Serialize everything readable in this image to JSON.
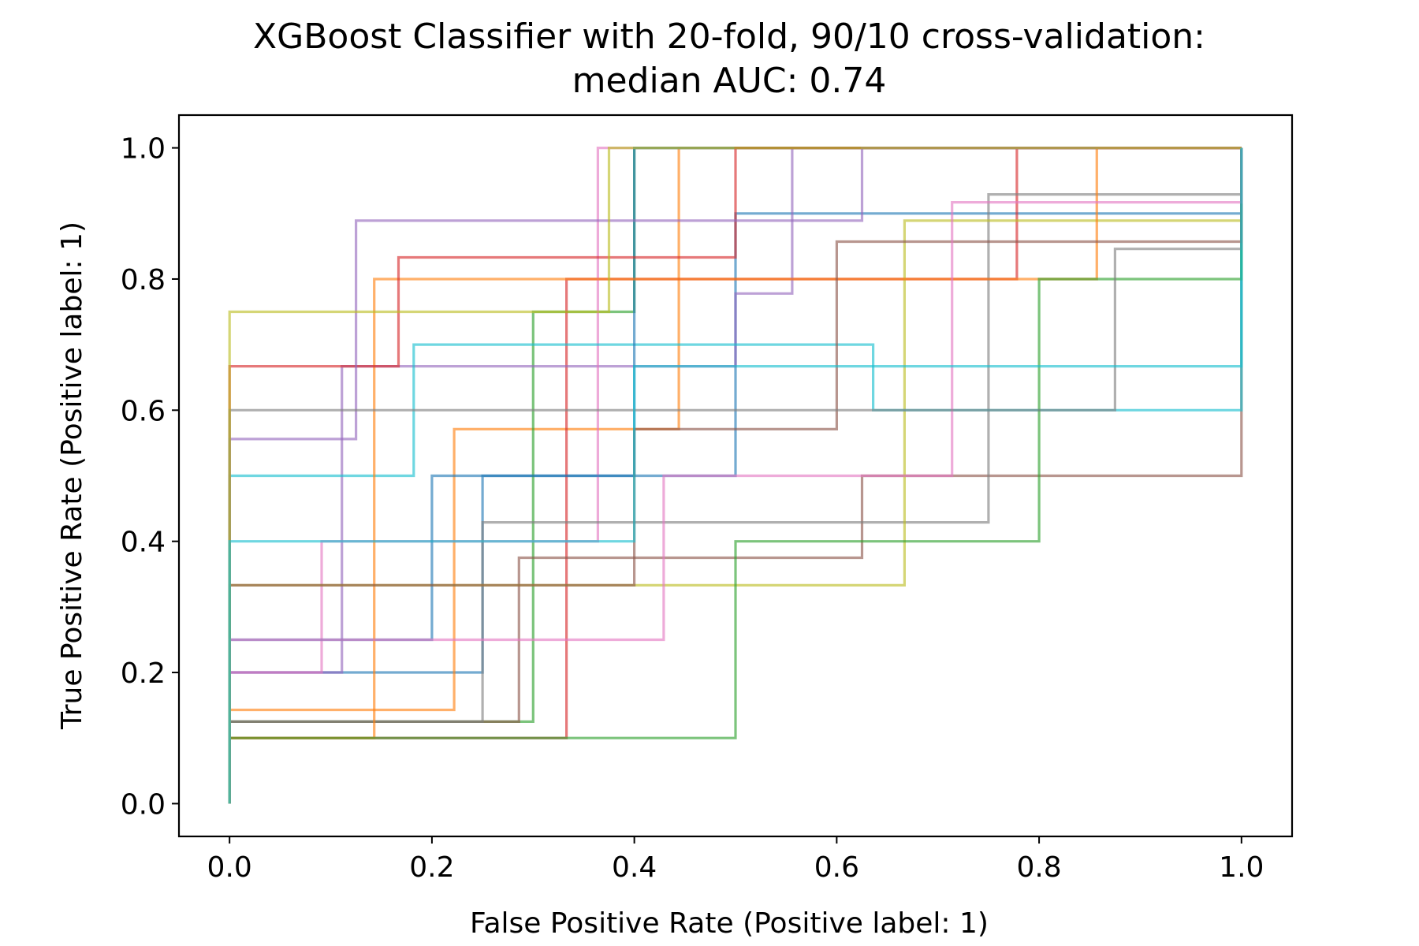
{
  "chart_data": {
    "type": "line",
    "title": "XGBoost Classifier with 20-fold, 90/10 cross-validation:",
    "subtitle": "median AUC: 0.74",
    "xlabel": "False Positive Rate (Positive label: 1)",
    "ylabel": "True Positive Rate (Positive label: 1)",
    "xlim": [
      -0.05,
      1.05
    ],
    "ylim": [
      -0.05,
      1.05
    ],
    "xticks": [
      "0.0",
      "0.2",
      "0.4",
      "0.6",
      "0.8",
      "1.0"
    ],
    "yticks": [
      "0.0",
      "0.2",
      "0.4",
      "0.6",
      "0.8",
      "1.0"
    ],
    "grid": false,
    "legend": "none",
    "colors": [
      "#1f77b4",
      "#ff7f0e",
      "#2ca02c",
      "#d62728",
      "#9467bd",
      "#8c564b",
      "#e377c2",
      "#7f7f7f",
      "#bcbd22",
      "#17becf"
    ],
    "series": [
      {
        "x": [
          0,
          0,
          0.25,
          0.25,
          0.5,
          0.5,
          1,
          1
        ],
        "y": [
          0,
          0.2,
          0.2,
          0.5,
          0.5,
          0.9,
          0.9,
          1
        ]
      },
      {
        "x": [
          0,
          0,
          0.222,
          0.222,
          0.444,
          0.444,
          1,
          1
        ],
        "y": [
          0,
          0.143,
          0.143,
          0.571,
          0.571,
          1,
          1,
          1
        ]
      },
      {
        "x": [
          0,
          0,
          0.3,
          0.3,
          0.4,
          0.4,
          1,
          1
        ],
        "y": [
          0,
          0.125,
          0.125,
          0.75,
          0.75,
          1,
          1,
          1
        ]
      },
      {
        "x": [
          0,
          0,
          0.333,
          0.333,
          0.778,
          0.778,
          1,
          1
        ],
        "y": [
          0,
          0.1,
          0.1,
          0.8,
          0.8,
          1,
          1,
          1
        ]
      },
      {
        "x": [
          0,
          0,
          0.111,
          0.111,
          0.5,
          0.5,
          0.556,
          0.556,
          1,
          1
        ],
        "y": [
          0,
          0.2,
          0.2,
          0.667,
          0.667,
          0.778,
          0.778,
          1,
          1,
          1
        ]
      },
      {
        "x": [
          0,
          0,
          0.286,
          0.286,
          0.625,
          0.625,
          1,
          1
        ],
        "y": [
          0,
          0.125,
          0.125,
          0.375,
          0.375,
          0.5,
          0.5,
          1
        ]
      },
      {
        "x": [
          0,
          0,
          0.091,
          0.091,
          0.364,
          0.364,
          1,
          1
        ],
        "y": [
          0,
          0.2,
          0.2,
          0.4,
          0.4,
          1,
          1,
          1
        ]
      },
      {
        "x": [
          0,
          0,
          0.25,
          0.25,
          0.75,
          0.75,
          1,
          1
        ],
        "y": [
          0,
          0.125,
          0.125,
          0.429,
          0.429,
          0.929,
          0.929,
          1
        ]
      },
      {
        "x": [
          0,
          0,
          0.333,
          0.333,
          0.667,
          0.667,
          1,
          1
        ],
        "y": [
          0,
          0.333,
          0.333,
          0.333,
          0.333,
          0.889,
          0.889,
          1
        ]
      },
      {
        "x": [
          0,
          0,
          0.182,
          0.182,
          0.636,
          0.636,
          1,
          1
        ],
        "y": [
          0,
          0.5,
          0.5,
          0.7,
          0.7,
          0.6,
          0.6,
          1
        ]
      },
      {
        "x": [
          0,
          0,
          0.2,
          0.2,
          0.4,
          0.4,
          1,
          1
        ],
        "y": [
          0,
          0.25,
          0.25,
          0.5,
          0.5,
          1,
          1,
          1
        ]
      },
      {
        "x": [
          0,
          0,
          0.143,
          0.143,
          0.429,
          0.429,
          0.857,
          0.857,
          1,
          1
        ],
        "y": [
          0,
          0.1,
          0.1,
          0.8,
          0.8,
          0.8,
          0.8,
          1,
          1,
          1
        ]
      },
      {
        "x": [
          0,
          0,
          0.5,
          0.5,
          0.8,
          0.8,
          1,
          1
        ],
        "y": [
          0,
          0.1,
          0.1,
          0.4,
          0.4,
          0.8,
          0.8,
          1
        ]
      },
      {
        "x": [
          0,
          0,
          0.167,
          0.167,
          0.5,
          0.5,
          1,
          1
        ],
        "y": [
          0,
          0.667,
          0.667,
          0.833,
          0.833,
          1,
          1,
          1
        ]
      },
      {
        "x": [
          0,
          0,
          0.125,
          0.125,
          0.625,
          0.625,
          1,
          1
        ],
        "y": [
          0,
          0.556,
          0.556,
          0.889,
          0.889,
          1,
          1,
          1
        ]
      },
      {
        "x": [
          0,
          0,
          0.4,
          0.4,
          0.6,
          0.6,
          1,
          1
        ],
        "y": [
          0,
          0.333,
          0.333,
          0.571,
          0.571,
          0.857,
          0.857,
          1
        ]
      },
      {
        "x": [
          0,
          0,
          0.429,
          0.429,
          0.714,
          0.714,
          1,
          1
        ],
        "y": [
          0,
          0.25,
          0.25,
          0.5,
          0.5,
          0.917,
          0.917,
          1
        ]
      },
      {
        "x": [
          0,
          0,
          0.556,
          0.556,
          0.875,
          0.875,
          1,
          1
        ],
        "y": [
          0,
          0.6,
          0.6,
          0.6,
          0.6,
          0.846,
          0.846,
          1
        ]
      },
      {
        "x": [
          0,
          0,
          0.1,
          0.1,
          0.375,
          0.375,
          1,
          1
        ],
        "y": [
          0,
          0.75,
          0.75,
          0.75,
          0.75,
          1,
          1,
          1
        ]
      },
      {
        "x": [
          0,
          0,
          0.4,
          0.4,
          0.667,
          0.667,
          1,
          1
        ],
        "y": [
          0,
          0.4,
          0.4,
          0.667,
          0.667,
          0.667,
          0.667,
          1
        ]
      }
    ]
  }
}
